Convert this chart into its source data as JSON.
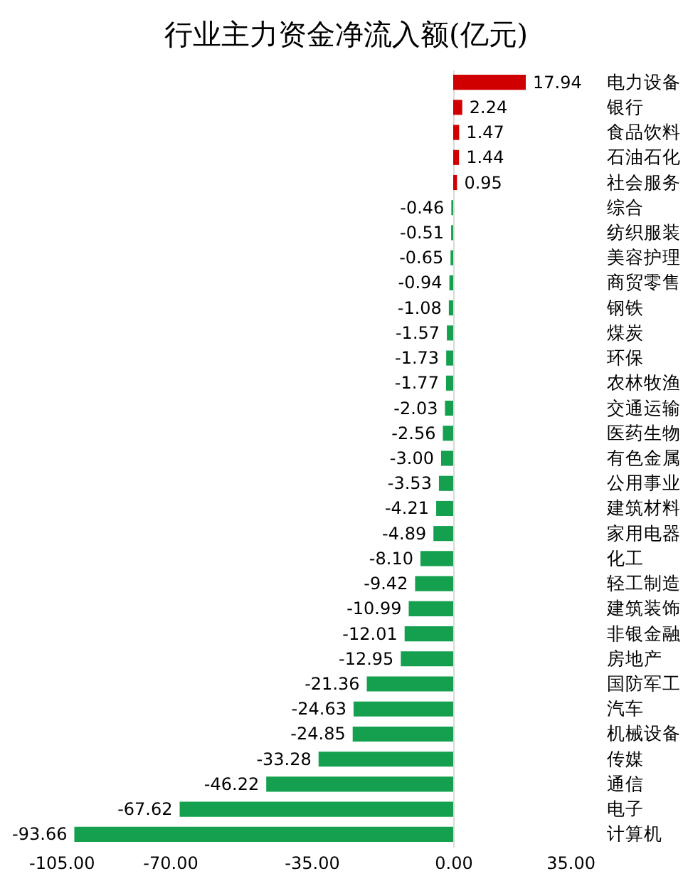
{
  "chart_data": {
    "type": "bar",
    "orientation": "horizontal",
    "title": "行业主力资金净流入额(亿元)",
    "categories": [
      "电力设备",
      "银行",
      "食品饮料",
      "石油石化",
      "社会服务",
      "综合",
      "纺织服装",
      "美容护理",
      "商贸零售",
      "钢铁",
      "煤炭",
      "环保",
      "农林牧渔",
      "交通运输",
      "医药生物",
      "有色金属",
      "公用事业",
      "建筑材料",
      "家用电器",
      "化工",
      "轻工制造",
      "建筑装饰",
      "非银金融",
      "房地产",
      "国防军工",
      "汽车",
      "机械设备",
      "传媒",
      "通信",
      "电子",
      "计算机"
    ],
    "values": [
      17.94,
      2.24,
      1.47,
      1.44,
      0.95,
      -0.46,
      -0.51,
      -0.65,
      -0.94,
      -1.08,
      -1.57,
      -1.73,
      -1.77,
      -2.03,
      -2.56,
      -3.0,
      -3.53,
      -4.21,
      -4.89,
      -8.1,
      -9.42,
      -10.99,
      -12.01,
      -12.95,
      -21.36,
      -24.63,
      -24.85,
      -33.28,
      -46.22,
      -67.62,
      -93.66
    ],
    "value_labels": [
      "17.94",
      "2.24",
      "1.47",
      "1.44",
      "0.95",
      "-0.46",
      "-0.51",
      "-0.65",
      "-0.94",
      "-1.08",
      "-1.57",
      "-1.73",
      "-1.77",
      "-2.03",
      "-2.56",
      "-3.00",
      "-3.53",
      "-4.21",
      "-4.89",
      "-8.10",
      "-9.42",
      "-10.99",
      "-12.01",
      "-12.95",
      "-21.36",
      "-24.63",
      "-24.85",
      "-33.28",
      "-46.22",
      "-67.62",
      "-93.66"
    ],
    "colors": [
      "#d00000",
      "#d00000",
      "#d00000",
      "#d00000",
      "#d00000",
      "#14a04f",
      "#14a04f",
      "#14a04f",
      "#14a04f",
      "#14a04f",
      "#14a04f",
      "#14a04f",
      "#14a04f",
      "#14a04f",
      "#14a04f",
      "#14a04f",
      "#14a04f",
      "#14a04f",
      "#14a04f",
      "#14a04f",
      "#14a04f",
      "#14a04f",
      "#14a04f",
      "#14a04f",
      "#14a04f",
      "#14a04f",
      "#14a04f",
      "#14a04f",
      "#14a04f",
      "#14a04f",
      "#14a04f"
    ],
    "xlim": [
      -105,
      35
    ],
    "xticks": [
      {
        "value": -105,
        "label": "-105.00"
      },
      {
        "value": -70,
        "label": "-70.00"
      },
      {
        "value": -35,
        "label": "-35.00"
      },
      {
        "value": 0,
        "label": "0.00"
      },
      {
        "value": 35,
        "label": "35.00"
      }
    ]
  }
}
